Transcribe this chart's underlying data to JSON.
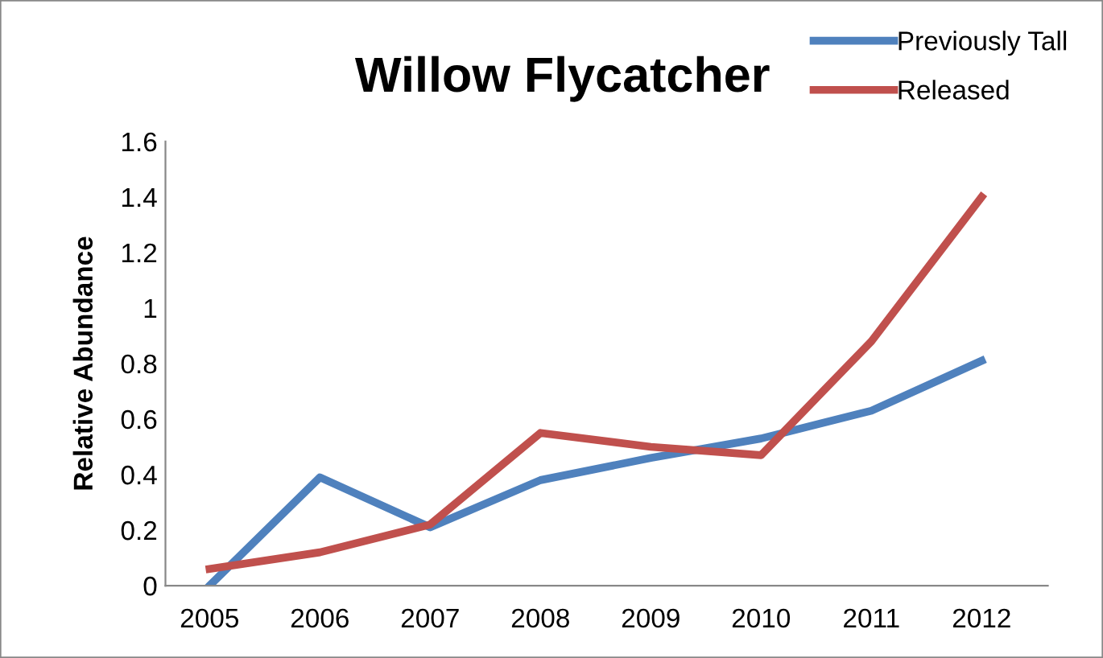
{
  "chart_data": {
    "type": "line",
    "title": "Willow Flycatcher",
    "ylabel": "Relative Abundance",
    "categories": [
      "2005",
      "2006",
      "2007",
      "2008",
      "2009",
      "2010",
      "2011",
      "2012"
    ],
    "series": [
      {
        "name": "Previously Tall",
        "color": "#4f81bd",
        "values": [
          0,
          0.39,
          0.21,
          0.38,
          0.46,
          0.53,
          0.63,
          0.81
        ]
      },
      {
        "name": "Released",
        "color": "#c0504d",
        "values": [
          0.06,
          0.12,
          0.22,
          0.55,
          0.5,
          0.47,
          0.88,
          1.4
        ]
      }
    ],
    "ylim": [
      0,
      1.6
    ],
    "yticks": [
      0,
      0.2,
      0.4,
      0.6,
      0.8,
      1,
      1.2,
      1.4,
      1.6
    ],
    "grid": false,
    "legend": "top right",
    "marker": "none",
    "line_style": "solid"
  }
}
